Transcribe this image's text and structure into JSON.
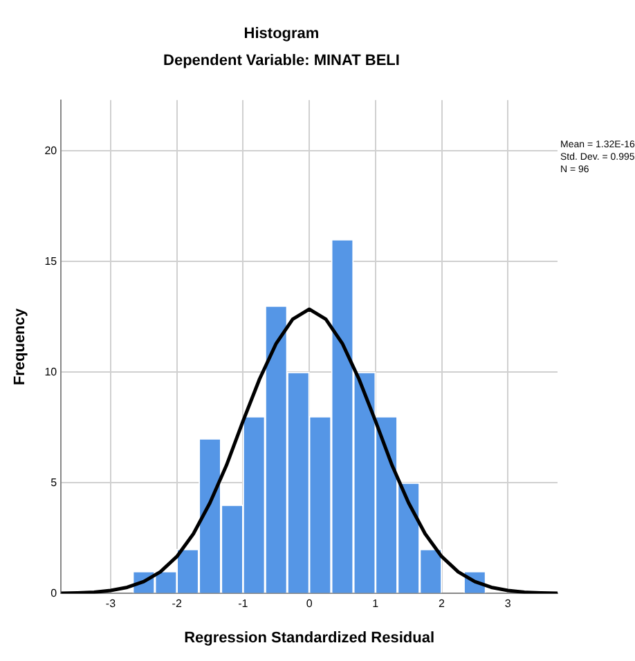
{
  "chart_data": {
    "type": "histogram",
    "title": "Histogram",
    "subtitle": "Dependent Variable: MINAT BELI",
    "xlabel": "Regression Standardized Residual",
    "ylabel": "Frequency",
    "bins": [
      -2.67,
      -2.33,
      -2,
      -1.67,
      -1.33,
      -1,
      -0.67,
      -0.33,
      0,
      0.33,
      0.67,
      1,
      1.33,
      1.67,
      2,
      2.33,
      2.67
    ],
    "values": [
      1,
      1,
      2,
      7,
      4,
      8,
      13,
      10,
      8,
      16,
      10,
      8,
      5,
      2,
      0,
      1
    ],
    "color": "#5596e6",
    "series": [
      {
        "type": "line",
        "color": "#000000",
        "marker": "none",
        "x": [
          -3.75,
          -3.5,
          -3.25,
          -3,
          -2.75,
          -2.5,
          -2.25,
          -2,
          -1.75,
          -1.5,
          -1.25,
          -1,
          -0.75,
          -0.5,
          -0.25,
          0,
          0.25,
          0.5,
          0.75,
          1,
          1.25,
          1.5,
          1.75,
          2,
          2.25,
          2.5,
          2.75,
          3,
          3.25,
          3.5,
          3.75
        ],
        "values": [
          0.01,
          0.03,
          0.06,
          0.14,
          0.28,
          0.54,
          0.98,
          1.67,
          2.7,
          4.1,
          5.8,
          7.8,
          9.7,
          11.3,
          12.4,
          12.85,
          12.4,
          11.3,
          9.7,
          7.8,
          5.8,
          4.1,
          2.7,
          1.67,
          0.98,
          0.54,
          0.28,
          0.14,
          0.06,
          0.03,
          0.01
        ]
      }
    ],
    "xlim": [
      -3.75,
      3.75
    ],
    "xticks": [
      -3,
      -2,
      -1,
      0,
      1,
      2,
      3
    ],
    "ylim": [
      0,
      22.3
    ],
    "yticks": [
      0,
      5,
      10,
      15,
      20
    ],
    "grid": true,
    "legend": false,
    "annotations": [
      "Mean = 1.32E-16",
      "Std. Dev. = 0.995",
      "N = 96"
    ]
  }
}
